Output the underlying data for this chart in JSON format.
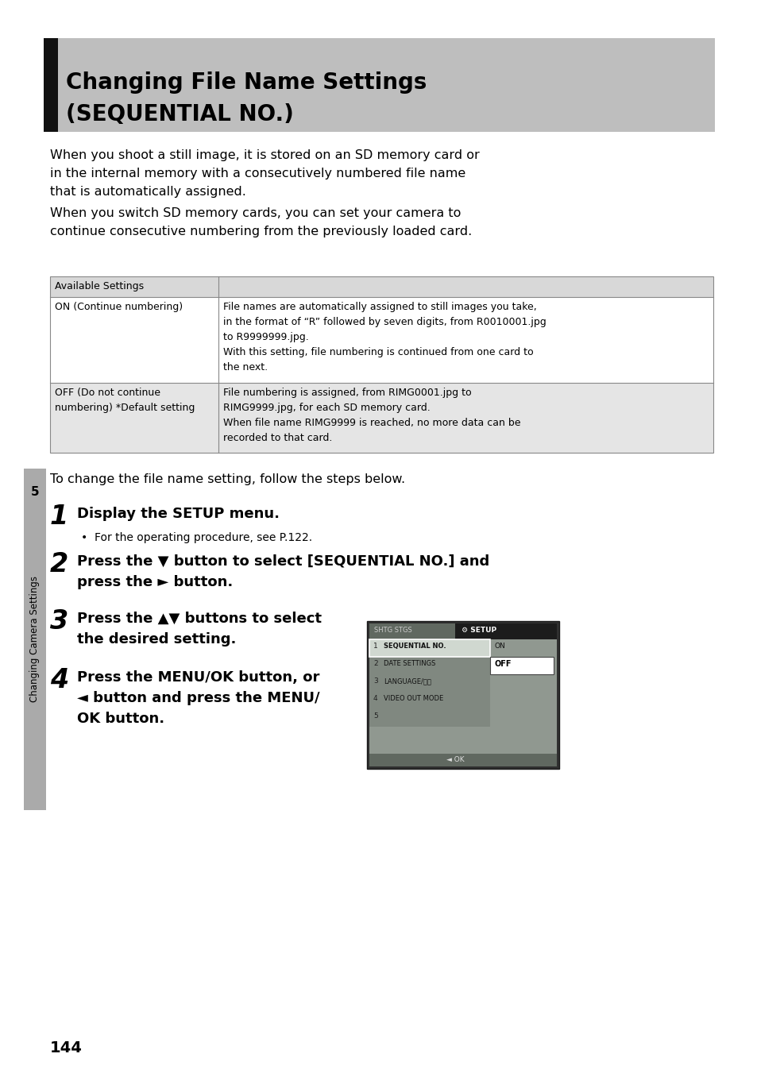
{
  "page_bg": "#ffffff",
  "header_bg": "#bebebe",
  "header_bar_color": "#111111",
  "header_title_line1": "Changing File Name Settings",
  "header_title_line2": "(SEQUENTIAL NO.)",
  "intro_text_1": "When you shoot a still image, it is stored on an SD memory card or",
  "intro_text_2": "in the internal memory with a consecutively numbered file name",
  "intro_text_3": "that is automatically assigned.",
  "intro_text_4": "When you switch SD memory cards, you can set your camera to",
  "intro_text_5": "continue consecutive numbering from the previously loaded card.",
  "table_header": "Available Settings",
  "table_row1_col1": "ON (Continue numbering)",
  "table_row1_col2_1": "File names are automatically assigned to still images you take,",
  "table_row1_col2_2": "in the format of “R” followed by seven digits, from R0010001.jpg",
  "table_row1_col2_3": "to R9999999.jpg.",
  "table_row1_col2_4": "With this setting, file numbering is continued from one card to",
  "table_row1_col2_5": "the next.",
  "table_row2_col1_1": "OFF (Do not continue",
  "table_row2_col1_2": "numbering) *Default setting",
  "table_row2_col2_1": "File numbering is assigned, from RIMG0001.jpg to",
  "table_row2_col2_2": "RIMG9999.jpg, for each SD memory card.",
  "table_row2_col2_3": "When file name RIMG9999 is reached, no more data can be",
  "table_row2_col2_4": "recorded to that card.",
  "table_row1_bg": "#ffffff",
  "table_row2_bg": "#e5e5e5",
  "table_header_bg": "#d8d8d8",
  "steps_intro": "To change the file name setting, follow the steps below.",
  "step1_num": "1",
  "step1_text": "Display the SETUP menu.",
  "step1_sub": "•  For the operating procedure, see P.122.",
  "step2_num": "2",
  "step2_text_1": "Press the ▼ button to select [SEQUENTIAL NO.] and",
  "step2_text_2": "press the ► button.",
  "step3_num": "3",
  "step3_text_1": "Press the ▲▼ buttons to select",
  "step3_text_2": "the desired setting.",
  "step4_num": "4",
  "step4_text_1": "Press the MENU/OK button, or",
  "step4_text_2": "◄ button and press the MENU/",
  "step4_text_3": "OK button.",
  "sidebar_num": "5",
  "sidebar_text": "Changing Camera Settings",
  "page_num": "144",
  "sidebar_bg": "#aaaaaa"
}
